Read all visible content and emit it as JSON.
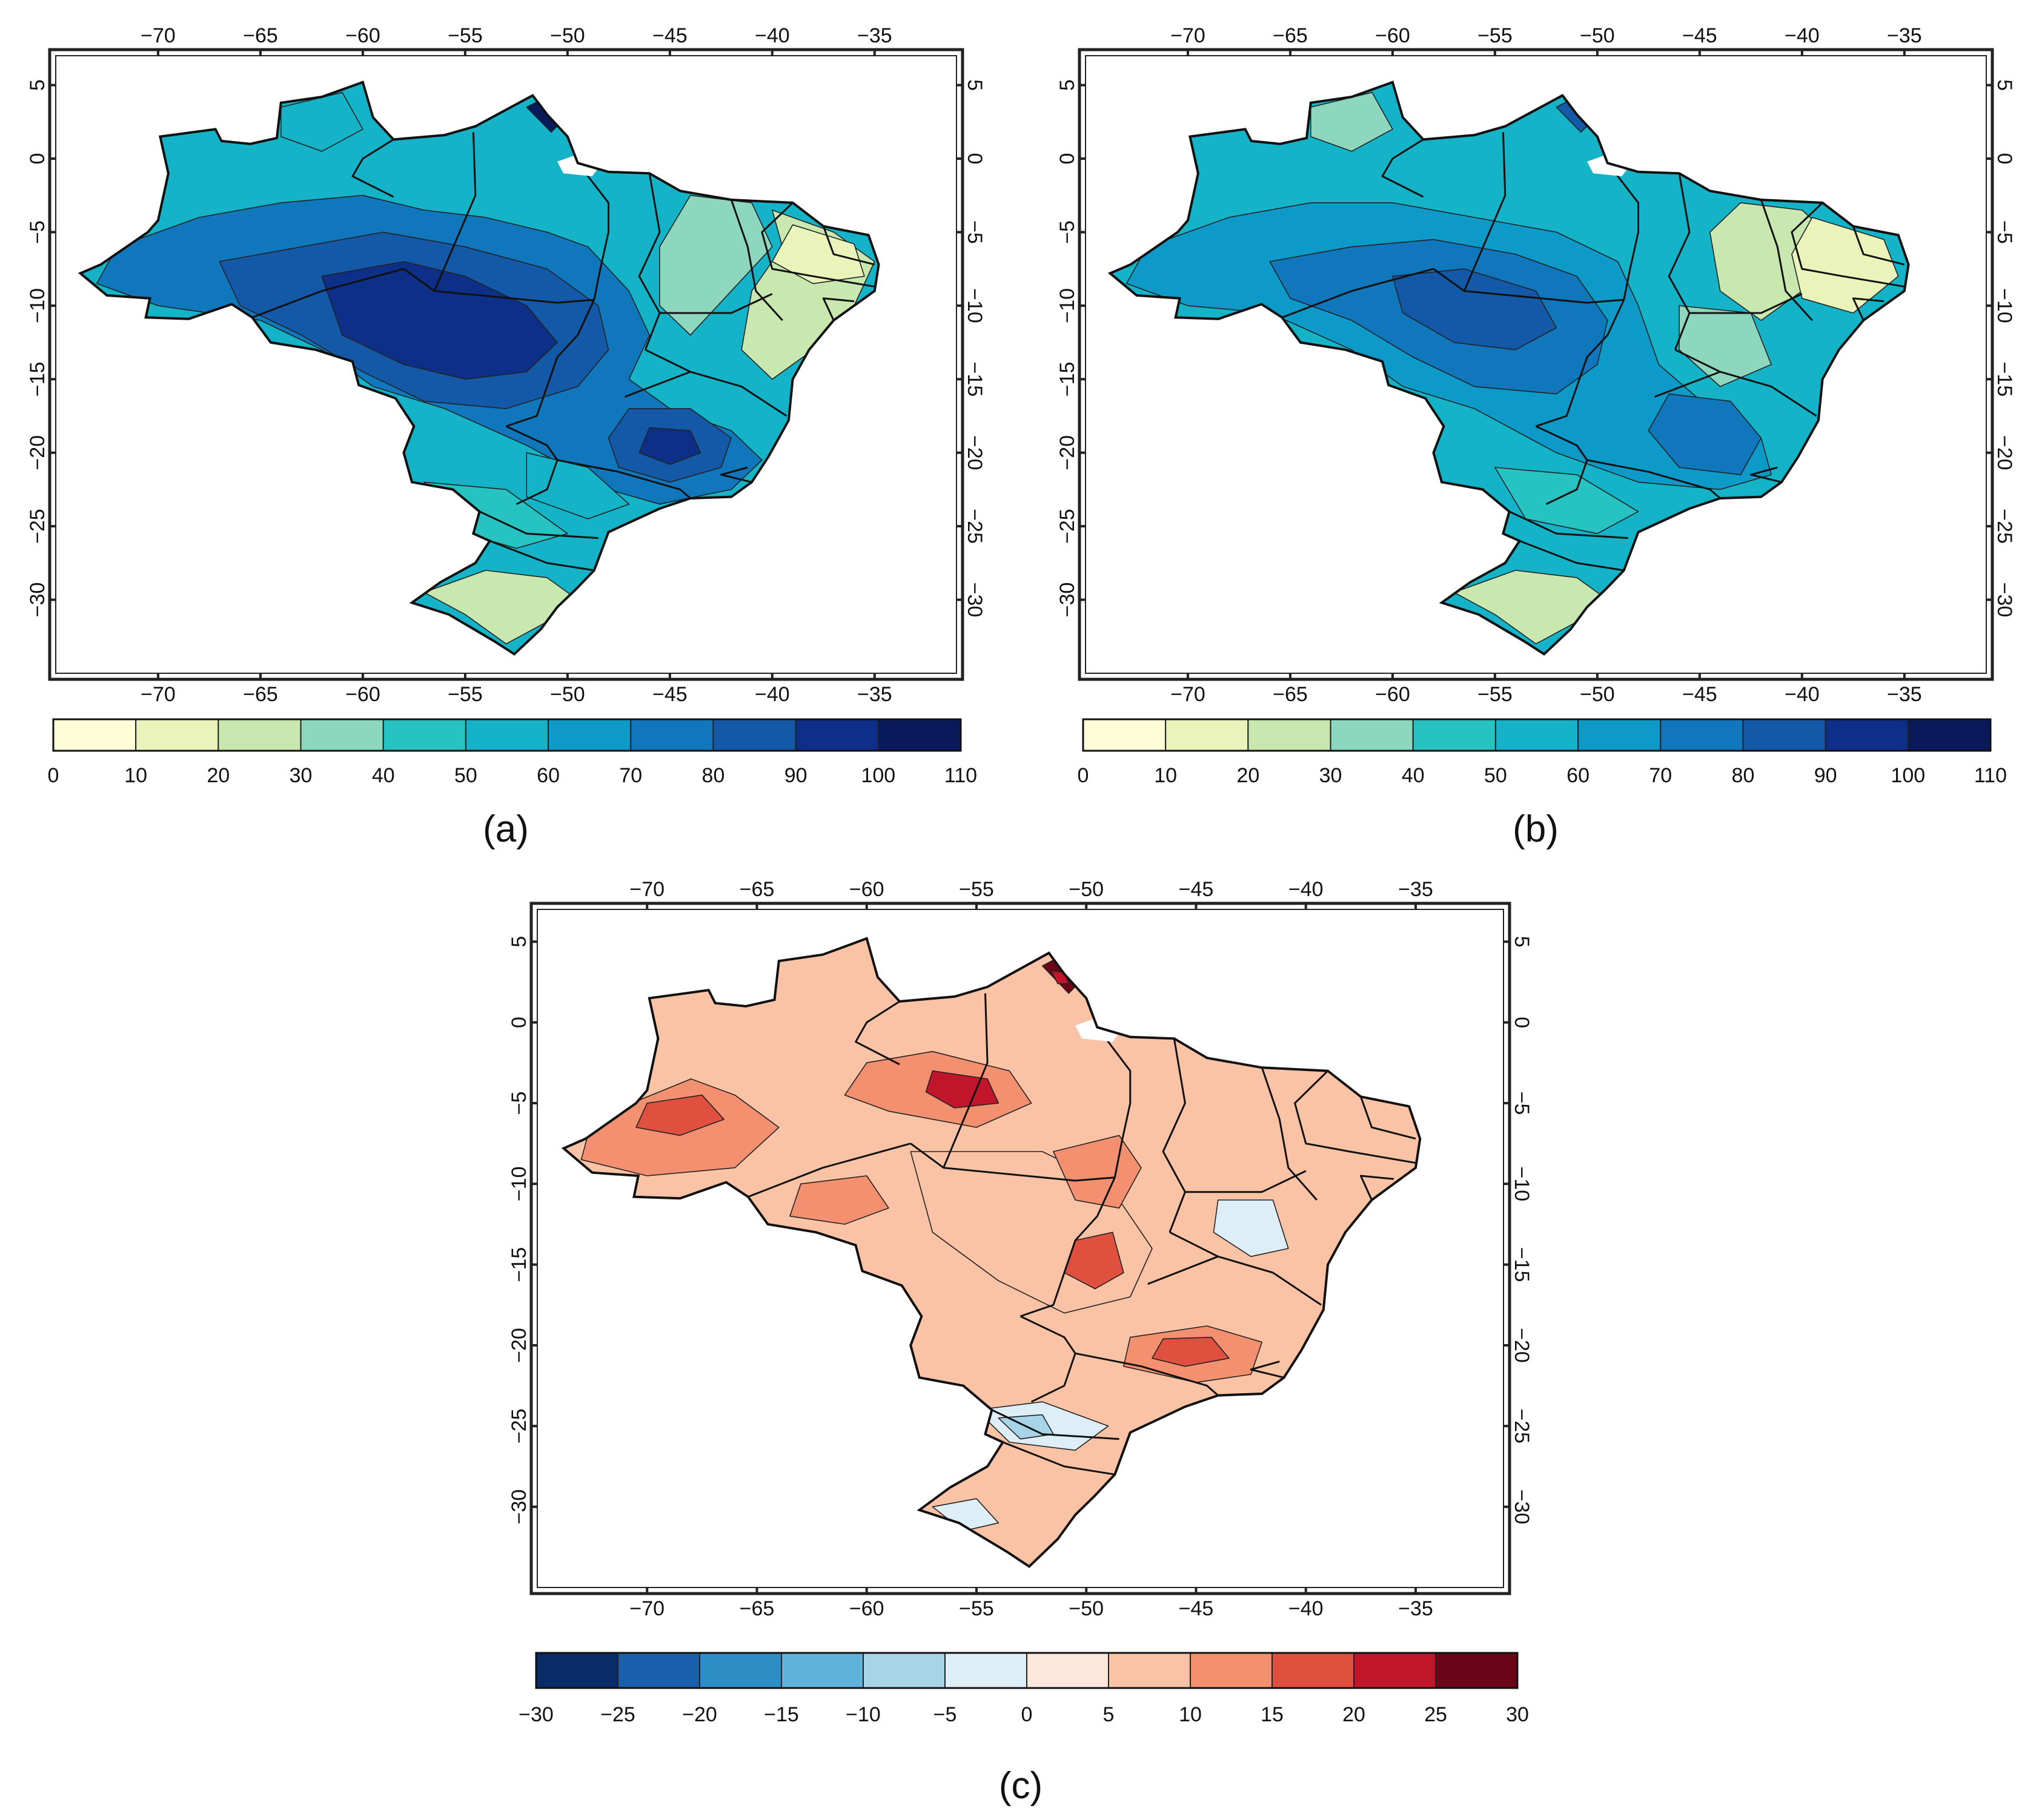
{
  "figure": {
    "panels": [
      {
        "id": "a",
        "caption": "(a)",
        "lon_ticks": [
          "−70",
          "−65",
          "−60",
          "−55",
          "−50",
          "−45",
          "−40",
          "−35"
        ],
        "lat_ticks": [
          "5",
          "0",
          "−5",
          "−10",
          "−15",
          "−20",
          "−25",
          "−30"
        ],
        "colorbar": {
          "labels": [
            "0",
            "10",
            "20",
            "30",
            "40",
            "50",
            "60",
            "70",
            "80",
            "90",
            "100",
            "110"
          ],
          "colors": [
            "#fdfdd8",
            "#eaf4ba",
            "#c8e8b0",
            "#8cd7bd",
            "#27c2c2",
            "#14b3c8",
            "#0d9ac8",
            "#1177bd",
            "#1459a8",
            "#0e2f88",
            "#091a5a"
          ]
        }
      },
      {
        "id": "b",
        "caption": "(b)",
        "lon_ticks": [
          "−70",
          "−65",
          "−60",
          "−55",
          "−50",
          "−45",
          "−40",
          "−35"
        ],
        "lat_ticks": [
          "5",
          "0",
          "−5",
          "−10",
          "−15",
          "−20",
          "−25",
          "−30"
        ],
        "colorbar": {
          "labels": [
            "0",
            "10",
            "20",
            "30",
            "40",
            "50",
            "60",
            "70",
            "80",
            "90",
            "100",
            "110"
          ],
          "colors": [
            "#fdfdd8",
            "#eaf4ba",
            "#c8e8b0",
            "#8cd7bd",
            "#27c2c2",
            "#14b3c8",
            "#0d9ac8",
            "#1177bd",
            "#1459a8",
            "#0e2f88",
            "#091a5a"
          ]
        }
      },
      {
        "id": "c",
        "caption": "(c)",
        "lon_ticks": [
          "−70",
          "−65",
          "−60",
          "−55",
          "−50",
          "−45",
          "−40",
          "−35"
        ],
        "lat_ticks": [
          "5",
          "0",
          "−5",
          "−10",
          "−15",
          "−20",
          "−25",
          "−30"
        ],
        "colorbar": {
          "labels": [
            "−30",
            "−25",
            "−20",
            "−15",
            "−10",
            "−5",
            "0",
            "5",
            "10",
            "15",
            "20",
            "25",
            "30"
          ],
          "colors": [
            "#0a2c66",
            "#1a5fab",
            "#2d8dc5",
            "#5fb2da",
            "#a8d4e8",
            "#ddeef6",
            "#fde6dc",
            "#fbc3a6",
            "#f3906f",
            "#e0503e",
            "#c0152a",
            "#6b0619"
          ]
        }
      }
    ]
  }
}
